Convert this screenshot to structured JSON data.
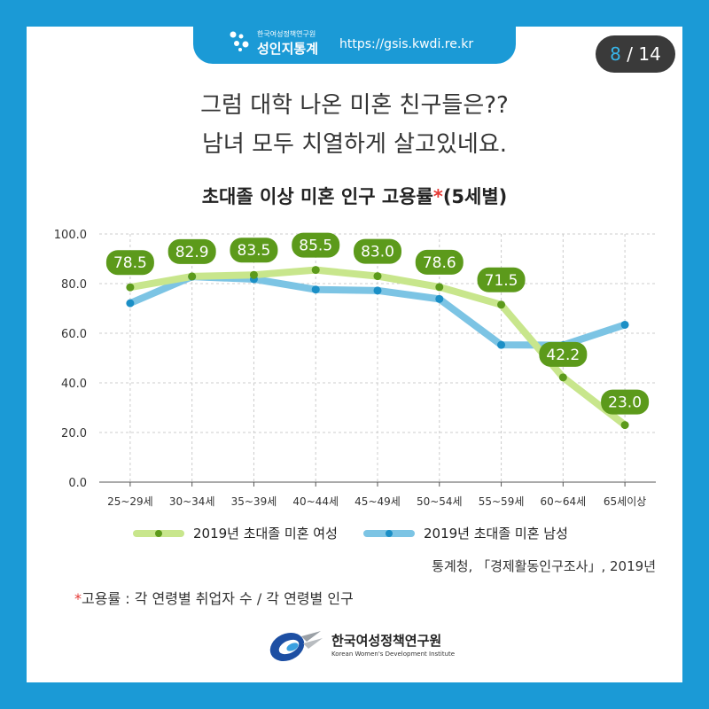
{
  "header": {
    "org_small": "한국여성정책연구원",
    "brand": "성인지통계",
    "url": "https://gsis.kwdi.re.kr",
    "page_current": "8",
    "page_separator": " / ",
    "page_total": "14"
  },
  "headline": {
    "line1": "그럼 대학 나온 미혼 친구들은??",
    "line2": "남녀 모두 치열하게 살고있네요."
  },
  "chart_title": {
    "main": "초대졸 이상 미혼 인구 고용률",
    "star": "*",
    "suffix": "(5세별)"
  },
  "chart_data": {
    "type": "line",
    "title": "초대졸 이상 미혼 인구 고용률*(5세별)",
    "categories": [
      "25~29세",
      "30~34세",
      "35~39세",
      "40~44세",
      "45~49세",
      "50~54세",
      "55~59세",
      "60~64세",
      "65세이상"
    ],
    "ylim": [
      0,
      100
    ],
    "yticks": [
      "0.0",
      "20.0",
      "40.0",
      "60.0",
      "80.0",
      "100.0"
    ],
    "grid": true,
    "legend_position": "bottom",
    "series": [
      {
        "name": "2019년 초대졸 미혼 여성",
        "values": [
          78.5,
          82.9,
          83.5,
          85.5,
          83.0,
          78.6,
          71.5,
          42.2,
          23.0
        ],
        "labels": [
          "78.5",
          "82.9",
          "83.5",
          "85.5",
          "83.0",
          "78.6",
          "71.5",
          "42.2",
          "23.0"
        ],
        "line_color": "#c8e68c",
        "dot_color": "#5c9a1b",
        "label_bg": "#5c9a1b"
      },
      {
        "name": "2019년 초대졸 미혼 남성",
        "values": [
          72.1,
          82.8,
          81.8,
          77.6,
          77.2,
          73.8,
          55.3,
          55.2,
          63.4
        ],
        "line_color": "#7cc4e4",
        "dot_color": "#1b8fc6"
      }
    ]
  },
  "source": "통계청, 「경제활동인구조사」, 2019년",
  "footnote": {
    "star": "*",
    "text": "고용률 : 각 연령별 취업자 수 / 각 연령별 인구"
  },
  "footer": {
    "org_name_ko": "한국여성정책연구원",
    "org_name_en": "Korean Women's Development Institute"
  },
  "colors": {
    "frame": "#1b9ad6",
    "accent_star": "#e53935",
    "page_counter_bg": "#3a3a3a",
    "page_counter_current": "#37b6ea"
  },
  "icons": {
    "header_logo": "dots-logo-icon",
    "footer_logo": "kwdi-swirl-logo-icon"
  }
}
